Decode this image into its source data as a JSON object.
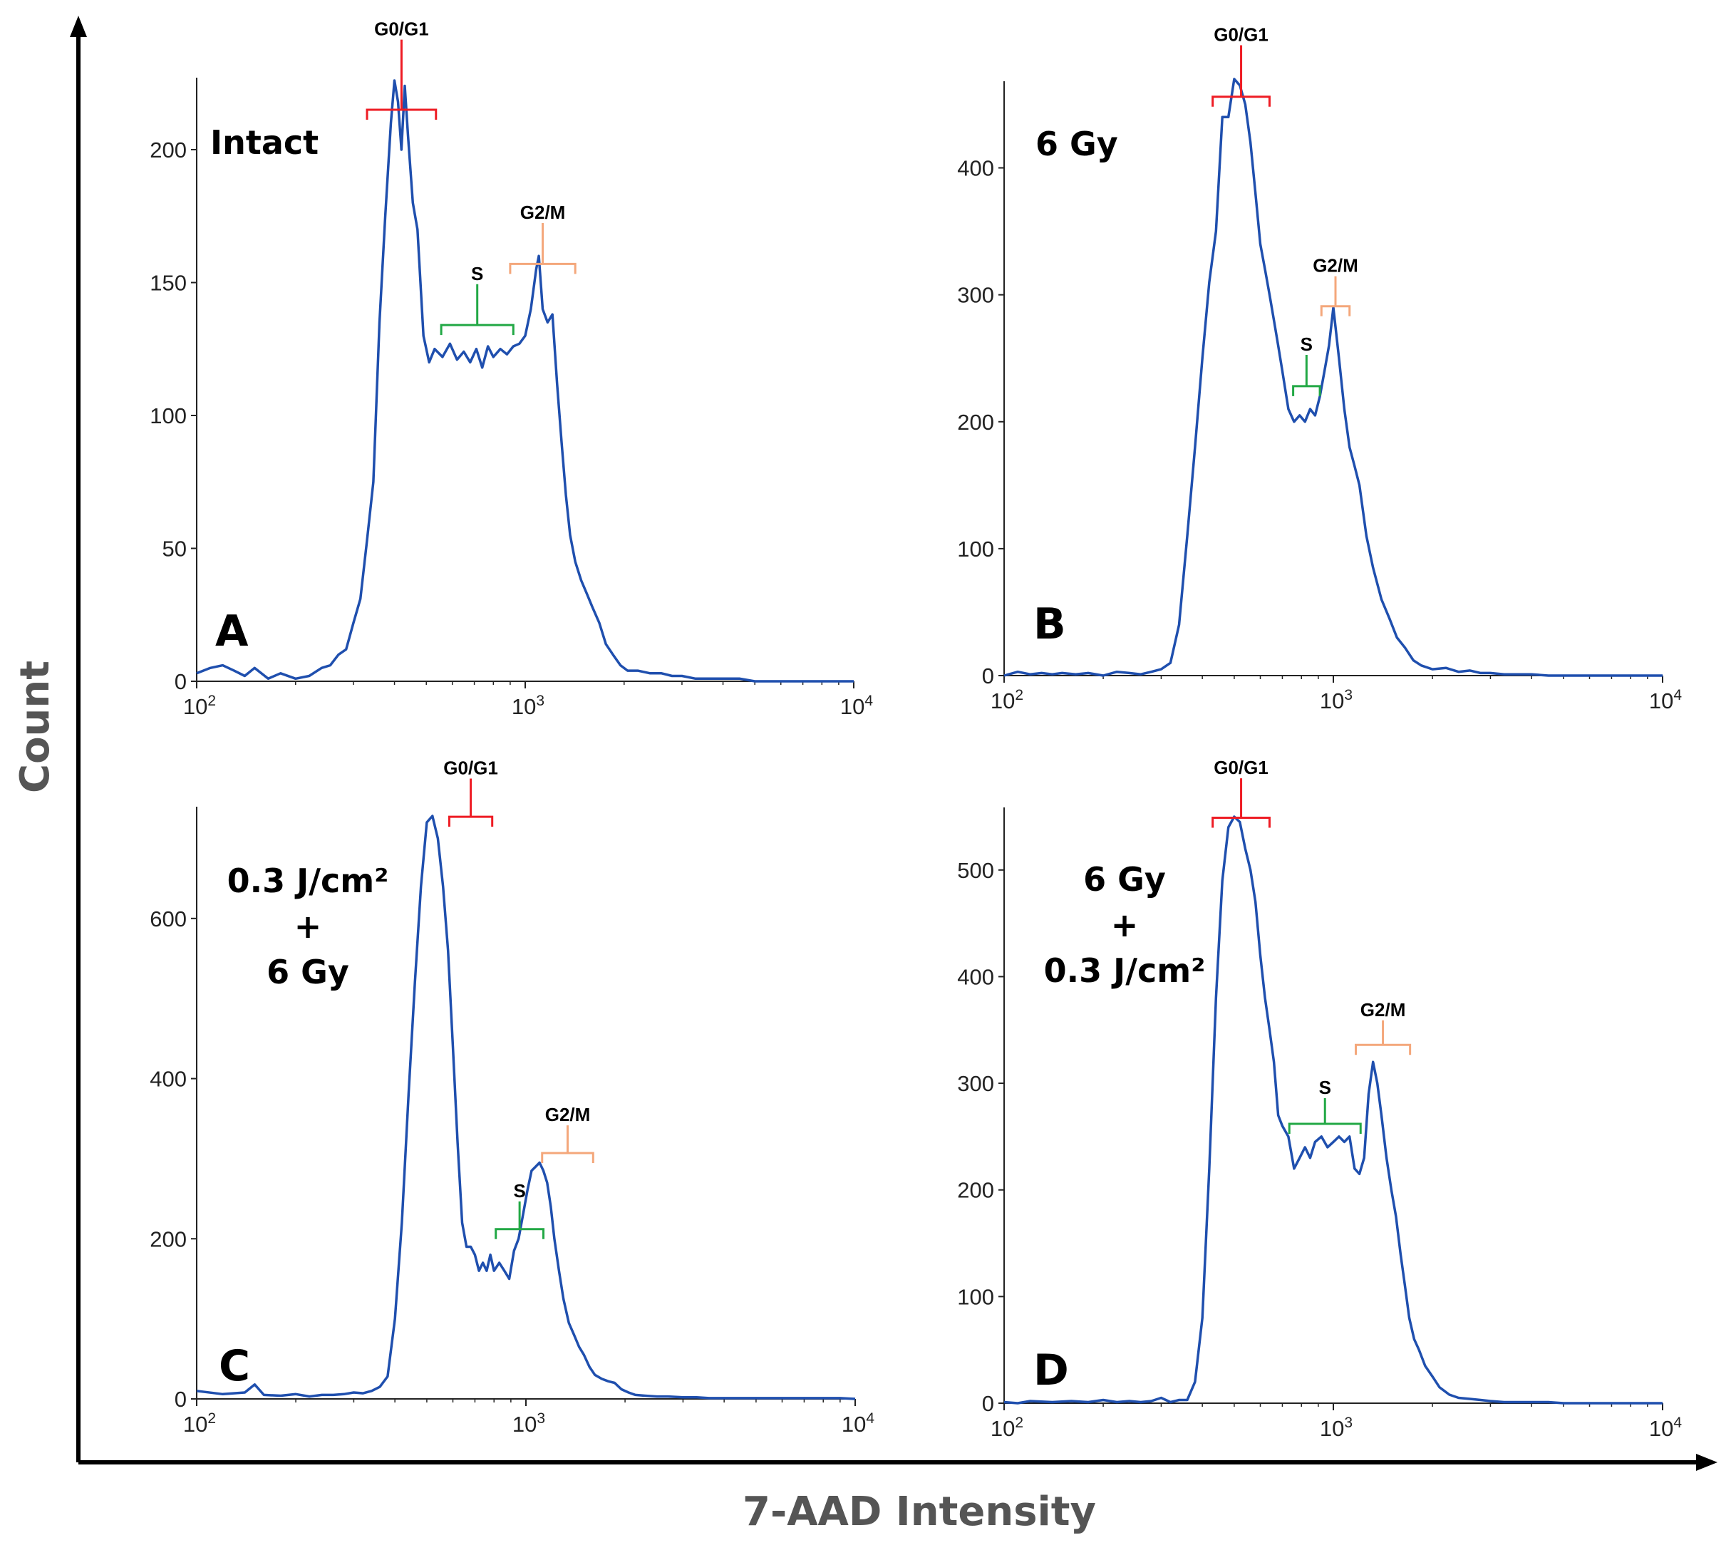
{
  "figure": {
    "y_axis_title": "Count",
    "x_axis_title": "7-AAD Intensity"
  },
  "colors": {
    "trace": "#1f4fae",
    "g0g1": "#ee1c24",
    "s": "#22a845",
    "g2m": "#f4a77b",
    "axis": "#222222",
    "outer_axis": "#000000"
  },
  "chart_data": [
    {
      "id": "A",
      "type": "line",
      "letter": "A",
      "title_lines": [
        "Intact"
      ],
      "xlabel": "7-AAD Intensity",
      "ylabel": "Count",
      "xscale": "log",
      "xlim": [
        100,
        10000
      ],
      "ylim": [
        0,
        226
      ],
      "yticks": [
        0,
        50,
        100,
        150,
        200
      ],
      "xticks": [
        {
          "value": 100,
          "base": "10",
          "exp": "2"
        },
        {
          "value": 1000,
          "base": "10",
          "exp": "3"
        },
        {
          "value": 10000,
          "base": "10",
          "exp": "4"
        }
      ],
      "gates": [
        {
          "label": "G0/G1",
          "color": "g0g1",
          "x_range": [
            330,
            535
          ],
          "y": 215,
          "label_y": 243
        },
        {
          "label": "S",
          "color": "s",
          "x_range": [
            555,
            920
          ],
          "y": 134,
          "label_y": 151
        },
        {
          "label": "G2/M",
          "color": "g2m",
          "x_range": [
            900,
            1420
          ],
          "y": 157,
          "label_y": 174
        }
      ],
      "series": [
        {
          "name": "7-AAD histogram",
          "x": [
            100,
            110,
            120,
            130,
            140,
            150,
            165,
            180,
            200,
            220,
            240,
            255,
            270,
            285,
            300,
            315,
            330,
            345,
            360,
            375,
            390,
            400,
            410,
            420,
            430,
            440,
            455,
            470,
            490,
            510,
            530,
            560,
            590,
            620,
            650,
            680,
            710,
            740,
            770,
            800,
            840,
            880,
            920,
            960,
            1000,
            1040,
            1080,
            1100,
            1130,
            1170,
            1210,
            1250,
            1290,
            1330,
            1370,
            1420,
            1480,
            1540,
            1600,
            1680,
            1760,
            1850,
            1950,
            2050,
            2200,
            2400,
            2600,
            2800,
            3000,
            3300,
            3600,
            4000,
            4500,
            5000,
            5500,
            6000,
            7000,
            8000,
            9000,
            10000
          ],
          "y": [
            3,
            5,
            6,
            4,
            2,
            5,
            1,
            3,
            1,
            2,
            5,
            6,
            10,
            12,
            22,
            31,
            53,
            75,
            135,
            175,
            210,
            226,
            218,
            200,
            224,
            205,
            180,
            170,
            130,
            120,
            125,
            122,
            127,
            121,
            124,
            120,
            125,
            118,
            126,
            122,
            125,
            123,
            126,
            127,
            130,
            140,
            155,
            160,
            140,
            135,
            138,
            112,
            90,
            70,
            55,
            45,
            38,
            33,
            28,
            22,
            14,
            10,
            6,
            4,
            4,
            3,
            3,
            2,
            2,
            1,
            1,
            1,
            1,
            0,
            0,
            0,
            0,
            0,
            0,
            0
          ]
        }
      ]
    },
    {
      "id": "B",
      "type": "line",
      "letter": "B",
      "title_lines": [
        "6 Gy"
      ],
      "xlabel": "7-AAD Intensity",
      "ylabel": "Count",
      "xscale": "log",
      "xlim": [
        100,
        10000
      ],
      "ylim": [
        0,
        466
      ],
      "yticks": [
        0,
        100,
        200,
        300,
        400
      ],
      "xticks": [
        {
          "value": 100,
          "base": "10",
          "exp": "2"
        },
        {
          "value": 1000,
          "base": "10",
          "exp": "3"
        },
        {
          "value": 10000,
          "base": "10",
          "exp": "4"
        }
      ],
      "gates": [
        {
          "label": "G0/G1",
          "color": "g0g1",
          "x_range": [
            430,
            640
          ],
          "y": 456,
          "label_y": 500
        },
        {
          "label": "S",
          "color": "s",
          "x_range": [
            755,
            910
          ],
          "y": 228,
          "label_y": 256
        },
        {
          "label": "G2/M",
          "color": "g2m",
          "x_range": [
            920,
            1120
          ],
          "y": 291,
          "label_y": 318
        }
      ],
      "series": [
        {
          "name": "7-AAD histogram",
          "x": [
            100,
            110,
            120,
            130,
            140,
            150,
            165,
            180,
            200,
            220,
            240,
            260,
            280,
            300,
            320,
            340,
            360,
            380,
            400,
            420,
            440,
            460,
            480,
            500,
            520,
            540,
            560,
            580,
            600,
            620,
            640,
            660,
            680,
            700,
            730,
            760,
            790,
            820,
            850,
            880,
            910,
            940,
            970,
            1000,
            1040,
            1080,
            1120,
            1160,
            1200,
            1260,
            1320,
            1400,
            1480,
            1560,
            1650,
            1750,
            1850,
            2000,
            2200,
            2400,
            2600,
            2800,
            3000,
            3300,
            3600,
            4000,
            4500,
            5000,
            6000,
            7000,
            8000,
            9000,
            10000
          ],
          "y": [
            0,
            3,
            1,
            2,
            1,
            2,
            1,
            2,
            0,
            3,
            2,
            1,
            3,
            5,
            10,
            40,
            110,
            180,
            250,
            310,
            350,
            440,
            440,
            470,
            465,
            450,
            420,
            380,
            340,
            320,
            300,
            280,
            260,
            240,
            210,
            200,
            205,
            200,
            210,
            205,
            220,
            240,
            260,
            290,
            250,
            210,
            180,
            165,
            150,
            110,
            85,
            60,
            45,
            30,
            22,
            12,
            8,
            5,
            6,
            3,
            4,
            2,
            2,
            1,
            1,
            1,
            0,
            0,
            0,
            0,
            0,
            0,
            0
          ]
        }
      ]
    },
    {
      "id": "C",
      "type": "line",
      "letter": "C",
      "title_lines": [
        "0.3 J/cm²",
        "+",
        "6 Gy"
      ],
      "xlabel": "7-AAD Intensity",
      "ylabel": "Count",
      "xscale": "log",
      "xlim": [
        100,
        10000
      ],
      "ylim": [
        0,
        736
      ],
      "yticks": [
        0,
        200,
        400,
        600
      ],
      "xticks": [
        {
          "value": 100,
          "base": "10",
          "exp": "2"
        },
        {
          "value": 1000,
          "base": "10",
          "exp": "3"
        },
        {
          "value": 10000,
          "base": "10",
          "exp": "4"
        }
      ],
      "gates": [
        {
          "label": "G0/G1",
          "color": "g0g1",
          "x_range": [
            585,
            790
          ],
          "y": 727,
          "label_y": 780
        },
        {
          "label": "S",
          "color": "s",
          "x_range": [
            810,
            1130
          ],
          "y": 212,
          "label_y": 252
        },
        {
          "label": "G2/M",
          "color": "g2m",
          "x_range": [
            1120,
            1600
          ],
          "y": 307,
          "label_y": 347
        }
      ],
      "series": [
        {
          "name": "7-AAD histogram",
          "x": [
            100,
            120,
            140,
            150,
            160,
            180,
            200,
            220,
            240,
            260,
            280,
            300,
            320,
            340,
            360,
            380,
            400,
            420,
            440,
            460,
            480,
            500,
            520,
            540,
            560,
            580,
            600,
            620,
            640,
            660,
            680,
            700,
            720,
            740,
            760,
            780,
            800,
            830,
            860,
            890,
            920,
            950,
            980,
            1010,
            1040,
            1070,
            1100,
            1130,
            1160,
            1190,
            1220,
            1260,
            1300,
            1350,
            1400,
            1450,
            1500,
            1560,
            1620,
            1700,
            1780,
            1860,
            1950,
            2050,
            2150,
            2300,
            2500,
            2700,
            3000,
            3300,
            3600,
            4000,
            4500,
            5000,
            6000,
            7000,
            8000,
            9000,
            10000
          ],
          "y": [
            10,
            6,
            8,
            18,
            5,
            4,
            6,
            3,
            5,
            5,
            6,
            8,
            7,
            10,
            15,
            28,
            100,
            220,
            380,
            520,
            640,
            720,
            728,
            700,
            640,
            560,
            440,
            320,
            220,
            190,
            190,
            180,
            160,
            170,
            160,
            180,
            160,
            170,
            160,
            150,
            185,
            200,
            230,
            260,
            285,
            290,
            295,
            285,
            270,
            240,
            200,
            160,
            125,
            95,
            80,
            65,
            55,
            40,
            30,
            25,
            22,
            20,
            12,
            8,
            5,
            4,
            3,
            3,
            2,
            2,
            1,
            1,
            1,
            1,
            1,
            1,
            1,
            1,
            0
          ]
        }
      ]
    },
    {
      "id": "D",
      "type": "line",
      "letter": "D",
      "title_lines": [
        "6 Gy",
        "+",
        "0.3 J/cm²"
      ],
      "xlabel": "7-AAD Intensity",
      "ylabel": "Count",
      "xscale": "log",
      "xlim": [
        100,
        10000
      ],
      "ylim": [
        0,
        556
      ],
      "yticks": [
        0,
        100,
        200,
        300,
        400,
        500
      ],
      "xticks": [
        {
          "value": 100,
          "base": "10",
          "exp": "2"
        },
        {
          "value": 1000,
          "base": "10",
          "exp": "3"
        },
        {
          "value": 10000,
          "base": "10",
          "exp": "4"
        }
      ],
      "gates": [
        {
          "label": "G0/G1",
          "color": "g0g1",
          "x_range": [
            430,
            640
          ],
          "y": 549,
          "label_y": 590
        },
        {
          "label": "S",
          "color": "s",
          "x_range": [
            735,
            1210
          ],
          "y": 262,
          "label_y": 290
        },
        {
          "label": "G2/M",
          "color": "g2m",
          "x_range": [
            1170,
            1710
          ],
          "y": 336,
          "label_y": 363
        }
      ],
      "series": [
        {
          "name": "7-AAD histogram",
          "x": [
            100,
            110,
            120,
            140,
            160,
            180,
            200,
            220,
            240,
            260,
            280,
            300,
            320,
            340,
            360,
            380,
            400,
            420,
            440,
            460,
            480,
            500,
            520,
            540,
            560,
            580,
            600,
            620,
            640,
            660,
            680,
            700,
            730,
            760,
            790,
            820,
            850,
            880,
            920,
            960,
            1000,
            1040,
            1080,
            1120,
            1160,
            1200,
            1240,
            1280,
            1320,
            1360,
            1400,
            1450,
            1500,
            1550,
            1600,
            1650,
            1700,
            1760,
            1820,
            1900,
            2000,
            2100,
            2250,
            2400,
            2600,
            2800,
            3000,
            3300,
            3600,
            4000,
            4500,
            5000,
            6000,
            7000,
            8000,
            9000,
            10000
          ],
          "y": [
            1,
            0,
            2,
            1,
            2,
            1,
            3,
            1,
            2,
            1,
            2,
            5,
            1,
            3,
            3,
            20,
            80,
            220,
            380,
            490,
            540,
            550,
            545,
            520,
            500,
            470,
            420,
            380,
            350,
            320,
            270,
            260,
            250,
            220,
            230,
            240,
            230,
            245,
            250,
            240,
            245,
            250,
            245,
            250,
            220,
            215,
            230,
            290,
            320,
            300,
            270,
            230,
            200,
            175,
            140,
            110,
            80,
            60,
            50,
            35,
            25,
            15,
            8,
            5,
            4,
            3,
            2,
            1,
            1,
            1,
            1,
            0,
            0,
            0,
            0,
            0,
            0
          ]
        }
      ]
    }
  ]
}
